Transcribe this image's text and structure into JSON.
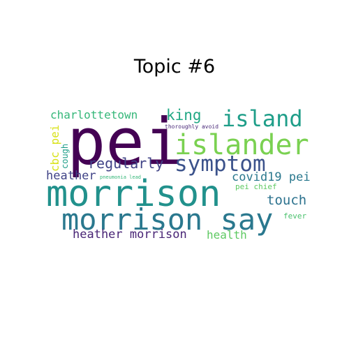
{
  "title": "Topic #6",
  "words": [
    {
      "text": "pei",
      "color": "#440154"
    },
    {
      "text": "morrison",
      "color": "#21918c"
    },
    {
      "text": "morrison say",
      "color": "#2a788e"
    },
    {
      "text": "islander",
      "color": "#7ad151"
    },
    {
      "text": "island",
      "color": "#1f9e89"
    },
    {
      "text": "symptom",
      "color": "#3b528b"
    },
    {
      "text": "regularly",
      "color": "#414487"
    },
    {
      "text": "king",
      "color": "#22a884"
    },
    {
      "text": "charlottetown",
      "color": "#35b779"
    },
    {
      "text": "heather morrison",
      "color": "#482475"
    },
    {
      "text": "touch",
      "color": "#2c728e"
    },
    {
      "text": "covid19 pei",
      "color": "#2a788e"
    },
    {
      "text": "health",
      "color": "#5ec962"
    },
    {
      "text": "heather",
      "color": "#414487"
    },
    {
      "text": "cbc pei",
      "color": "#d8e219"
    },
    {
      "text": "cough",
      "color": "#1f9e89"
    },
    {
      "text": "pei chief",
      "color": "#5ec962"
    },
    {
      "text": "fever",
      "color": "#4ac16d"
    },
    {
      "text": "thoroughly avoid",
      "color": "#482878"
    },
    {
      "text": "pneumonia lead",
      "color": "#35b779"
    }
  ]
}
